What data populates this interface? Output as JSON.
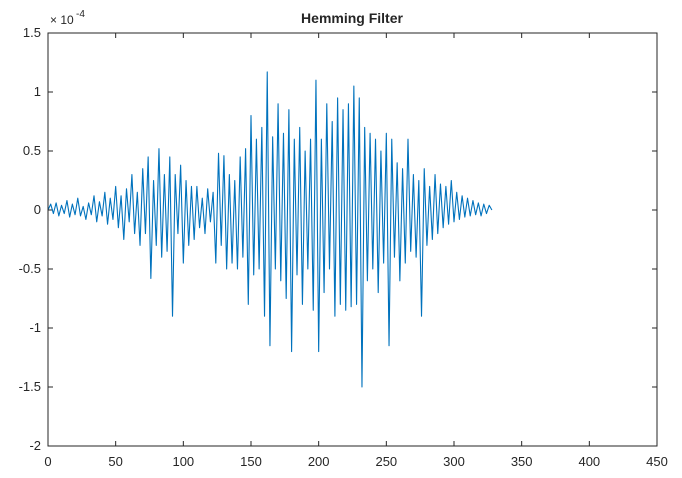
{
  "chart_data": {
    "type": "line",
    "title": "Hemming Filter",
    "xlabel": "",
    "ylabel": "",
    "exponent_label": "× 10",
    "exponent_power": "-4",
    "xlim": [
      0,
      450
    ],
    "ylim": [
      -2,
      1.5
    ],
    "grid": false,
    "x_ticks": [
      "0",
      "50",
      "100",
      "150",
      "200",
      "250",
      "300",
      "350",
      "400",
      "450"
    ],
    "y_ticks": [
      "1.5",
      "1",
      "0.5",
      "0",
      "-0.5",
      "-1",
      "-1.5",
      "-2"
    ],
    "series": [
      {
        "color": "#0072BD",
        "x_start": 0,
        "x_step": 2,
        "values": [
          0,
          0.05,
          -0.03,
          0.06,
          -0.05,
          0.04,
          -0.03,
          0.08,
          -0.06,
          0.05,
          -0.04,
          0.1,
          -0.05,
          0.03,
          -0.08,
          0.06,
          -0.04,
          0.12,
          -0.1,
          0.07,
          -0.05,
          0.15,
          -0.12,
          0.1,
          -0.08,
          0.2,
          -0.15,
          0.12,
          -0.25,
          0.18,
          -0.1,
          0.3,
          -0.2,
          0.15,
          -0.3,
          0.35,
          -0.2,
          0.45,
          -0.58,
          0.25,
          -0.3,
          0.52,
          -0.4,
          0.3,
          -0.35,
          0.45,
          -0.9,
          0.3,
          -0.2,
          0.38,
          -0.45,
          0.25,
          -0.3,
          0.2,
          -0.25,
          0.2,
          -0.15,
          0.1,
          -0.2,
          0.18,
          -0.1,
          0.15,
          -0.45,
          0.48,
          -0.3,
          0.46,
          -0.5,
          0.3,
          -0.45,
          0.25,
          -0.5,
          0.45,
          -0.4,
          0.52,
          -0.8,
          0.8,
          -0.55,
          0.6,
          -0.5,
          0.7,
          -0.9,
          1.17,
          -1.15,
          0.62,
          -0.5,
          0.9,
          -0.6,
          0.65,
          -0.75,
          0.85,
          -1.2,
          0.6,
          -0.55,
          0.7,
          -0.8,
          0.5,
          -0.5,
          0.6,
          -0.85,
          1.1,
          -1.2,
          0.6,
          -0.7,
          0.9,
          -0.5,
          0.75,
          -0.9,
          0.95,
          -0.8,
          0.85,
          -0.85,
          0.9,
          -0.82,
          1.05,
          -0.8,
          0.95,
          -1.5,
          0.7,
          -0.6,
          0.65,
          -0.5,
          0.6,
          -0.7,
          0.5,
          -0.45,
          0.65,
          -1.15,
          0.6,
          -0.4,
          0.4,
          -0.6,
          0.35,
          -0.45,
          0.6,
          -0.35,
          0.3,
          -0.4,
          0.25,
          -0.9,
          0.35,
          -0.3,
          0.2,
          -0.25,
          0.3,
          -0.2,
          0.22,
          -0.15,
          0.2,
          -0.12,
          0.25,
          -0.1,
          0.15,
          -0.08,
          0.12,
          -0.06,
          0.1,
          -0.05,
          0.08,
          -0.04,
          0.06,
          -0.05,
          0.05,
          -0.03,
          0.04,
          0
        ]
      }
    ]
  }
}
